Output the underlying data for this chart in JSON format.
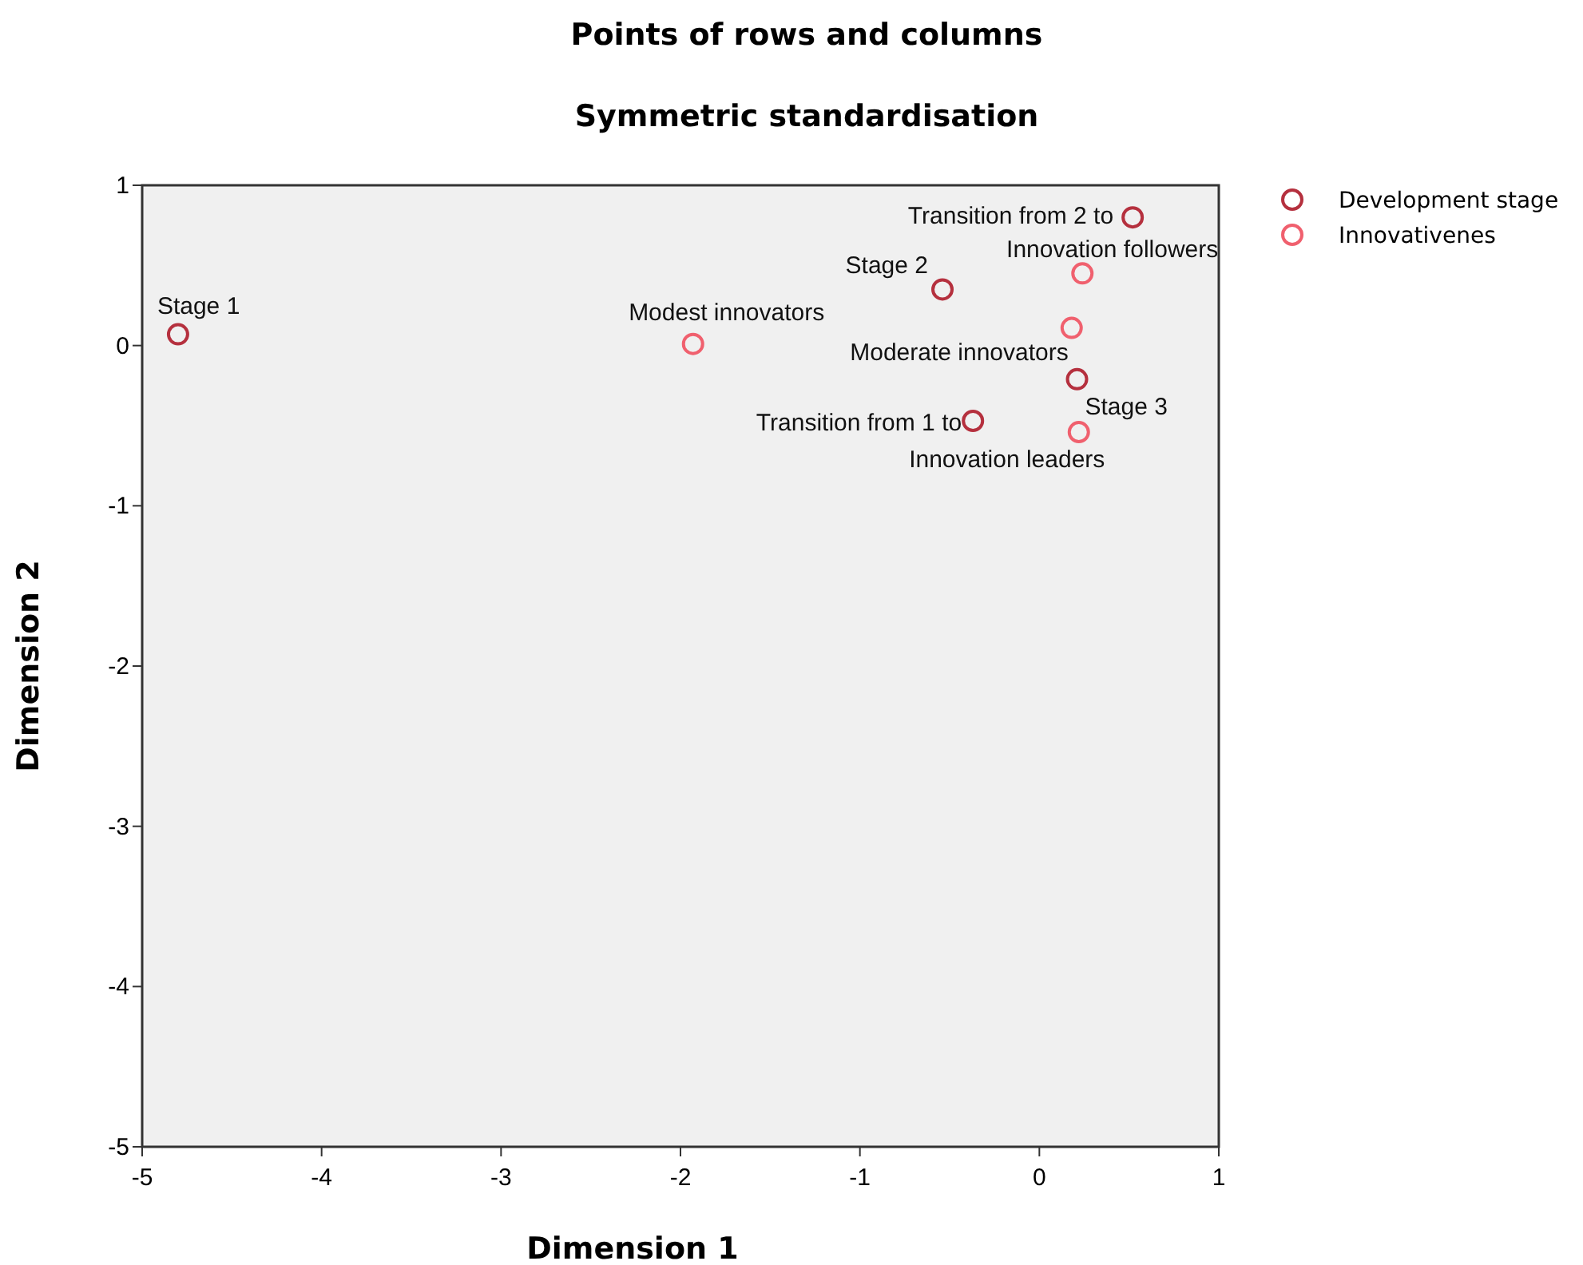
{
  "chart_data": {
    "type": "scatter",
    "title": "Points of rows and columns",
    "subtitle": "Symmetric standardisation",
    "xlabel": "Dimension 1",
    "ylabel": "Dimension 2",
    "xlim": [
      -5,
      1
    ],
    "ylim": [
      -5,
      1
    ],
    "xticks": [
      -5,
      -4,
      -3,
      -2,
      -1,
      0,
      1
    ],
    "yticks": [
      -5,
      -4,
      -3,
      -2,
      -1,
      0,
      1
    ],
    "marker": "circle",
    "legend": "top right",
    "grid": false,
    "series": [
      {
        "name": "Development stage",
        "color": "#b5303e",
        "x": [
          -4.8,
          0.52,
          -0.54,
          0.21,
          -0.37
        ],
        "values": [
          0.07,
          0.8,
          0.35,
          -0.21,
          -0.47
        ]
      },
      {
        "name": "Innovativenes",
        "color": "#f0606e",
        "x": [
          0.24,
          -1.93,
          0.18,
          0.22
        ],
        "values": [
          0.45,
          0.01,
          0.11,
          -0.54
        ]
      }
    ],
    "annotations": [
      {
        "text": "Stage 1",
        "x": -4.8,
        "y": 0.07
      },
      {
        "text": "Transition from 2 to",
        "x": 0.52,
        "y": 0.8
      },
      {
        "text": "Stage 2",
        "x": -0.54,
        "y": 0.35
      },
      {
        "text": "Stage 3",
        "x": 0.21,
        "y": -0.21
      },
      {
        "text": "Transition from 1 to",
        "x": -0.37,
        "y": -0.47
      },
      {
        "text": "Innovation followers",
        "x": 0.24,
        "y": 0.45
      },
      {
        "text": "Modest innovators",
        "x": -1.93,
        "y": 0.01
      },
      {
        "text": "Moderate innovators",
        "x": 0.18,
        "y": 0.11
      },
      {
        "text": "Innovation leaders",
        "x": 0.22,
        "y": -0.54
      }
    ]
  }
}
